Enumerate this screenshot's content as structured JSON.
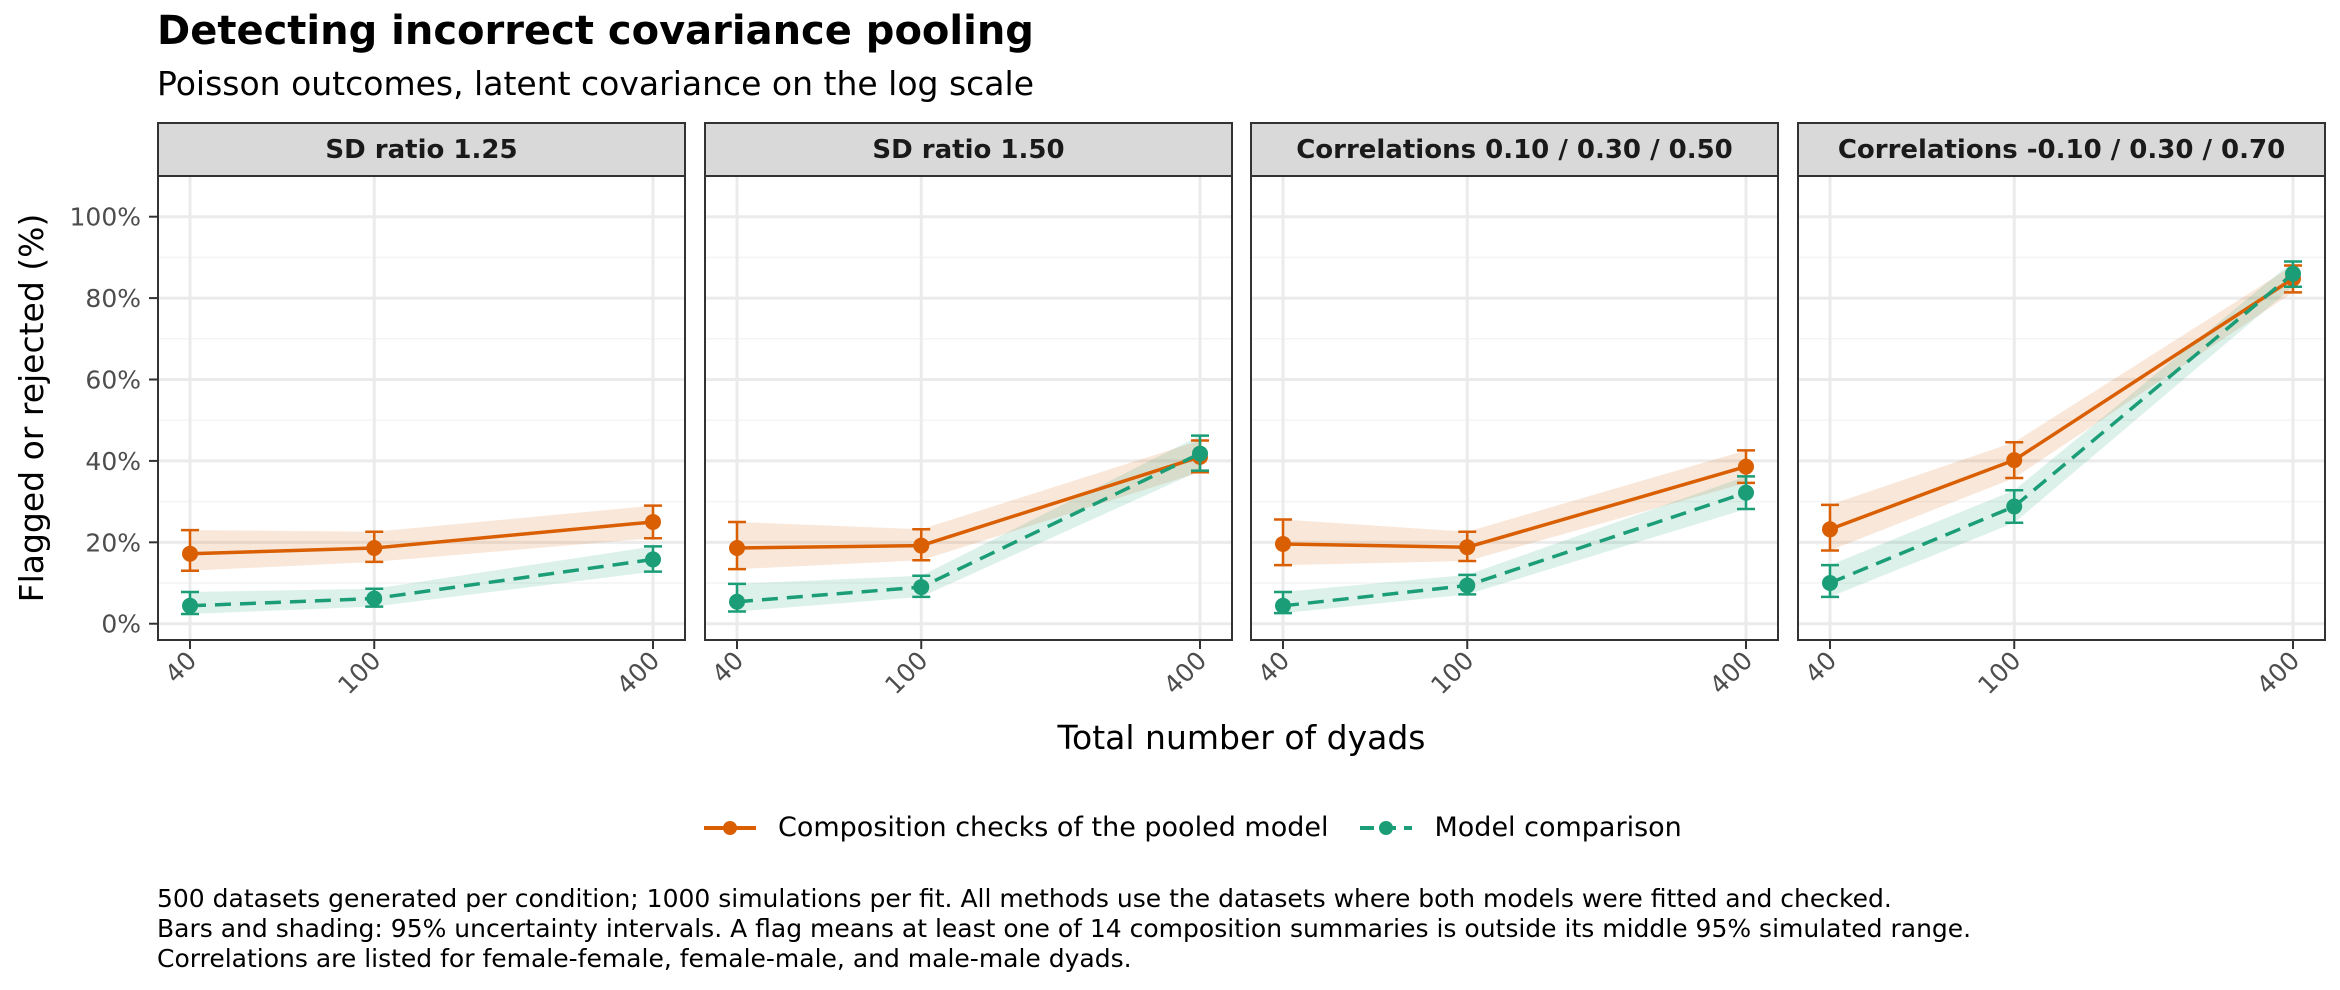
{
  "title": "Detecting incorrect covariance pooling",
  "subtitle": "Poisson outcomes, latent covariance on the log scale",
  "colors": {
    "composition": "#d95f02",
    "comparison": "#1b9e77",
    "strip_bg": "#d9d9d9",
    "grid": "#ebebeb"
  },
  "legend": [
    {
      "label": "Composition checks of the pooled model",
      "color": "#d95f02",
      "dash": false
    },
    {
      "label": "Model comparison",
      "color": "#1b9e77",
      "dash": true
    }
  ],
  "caption": [
    "500 datasets generated per condition; 1000 simulations per fit. All methods use the datasets where both models were fitted and checked.",
    "Bars and shading: 95% uncertainty intervals. A flag means at least one of 14 composition summaries is outside its middle 95% simulated range.",
    "Correlations are listed for female-female, female-male, and male-male dyads."
  ],
  "chart_data": {
    "type": "line",
    "xlabel": "Total number of dyads",
    "ylabel": "Flagged or rejected (%)",
    "x": [
      40,
      100,
      400
    ],
    "x_scale": "log",
    "x_tick_labels": [
      "40",
      "100",
      "400"
    ],
    "ylim": [
      -4,
      110
    ],
    "y_ticks": [
      0,
      20,
      40,
      60,
      80,
      100
    ],
    "y_tick_labels": [
      "0%",
      "20%",
      "40%",
      "60%",
      "80%",
      "100%"
    ],
    "grid": true,
    "legend_position": "bottom",
    "panels": [
      {
        "label": "SD ratio 1.25",
        "series": [
          {
            "name": "Composition checks of the pooled model",
            "values": [
              17.2,
              18.6,
              25.0
            ],
            "lower": [
              13.0,
              15.2,
              21.0
            ],
            "upper": [
              23.0,
              22.6,
              29.0
            ]
          },
          {
            "name": "Model comparison",
            "values": [
              4.4,
              6.2,
              15.8
            ],
            "lower": [
              2.4,
              4.2,
              12.8
            ],
            "upper": [
              7.8,
              8.6,
              19.0
            ]
          }
        ]
      },
      {
        "label": "SD ratio 1.50",
        "series": [
          {
            "name": "Composition checks of the pooled model",
            "values": [
              18.6,
              19.2,
              41.0
            ],
            "lower": [
              13.4,
              15.6,
              37.2
            ],
            "upper": [
              25.0,
              23.2,
              45.0
            ]
          },
          {
            "name": "Model comparison",
            "values": [
              5.4,
              9.0,
              41.8
            ],
            "lower": [
              3.0,
              6.6,
              37.6
            ],
            "upper": [
              9.8,
              11.8,
              46.2
            ]
          }
        ]
      },
      {
        "label": "Correlations 0.10 / 0.30 / 0.50",
        "series": [
          {
            "name": "Composition checks of the pooled model",
            "values": [
              19.6,
              18.8,
              38.6
            ],
            "lower": [
              14.4,
              15.4,
              34.6
            ],
            "upper": [
              25.6,
              22.6,
              42.6
            ]
          },
          {
            "name": "Model comparison",
            "values": [
              4.4,
              9.4,
              32.2
            ],
            "lower": [
              2.6,
              7.2,
              28.2
            ],
            "upper": [
              7.8,
              12.0,
              36.2
            ]
          }
        ]
      },
      {
        "label": "Correlations -0.10 / 0.30 / 0.70",
        "series": [
          {
            "name": "Composition checks of the pooled model",
            "values": [
              23.2,
              40.2,
              84.8
            ],
            "lower": [
              18.0,
              35.8,
              81.4
            ],
            "upper": [
              29.2,
              44.6,
              88.0
            ]
          },
          {
            "name": "Model comparison",
            "values": [
              10.0,
              28.8,
              86.0
            ],
            "lower": [
              6.6,
              24.8,
              82.8
            ],
            "upper": [
              14.4,
              32.8,
              89.0
            ]
          }
        ]
      }
    ]
  }
}
